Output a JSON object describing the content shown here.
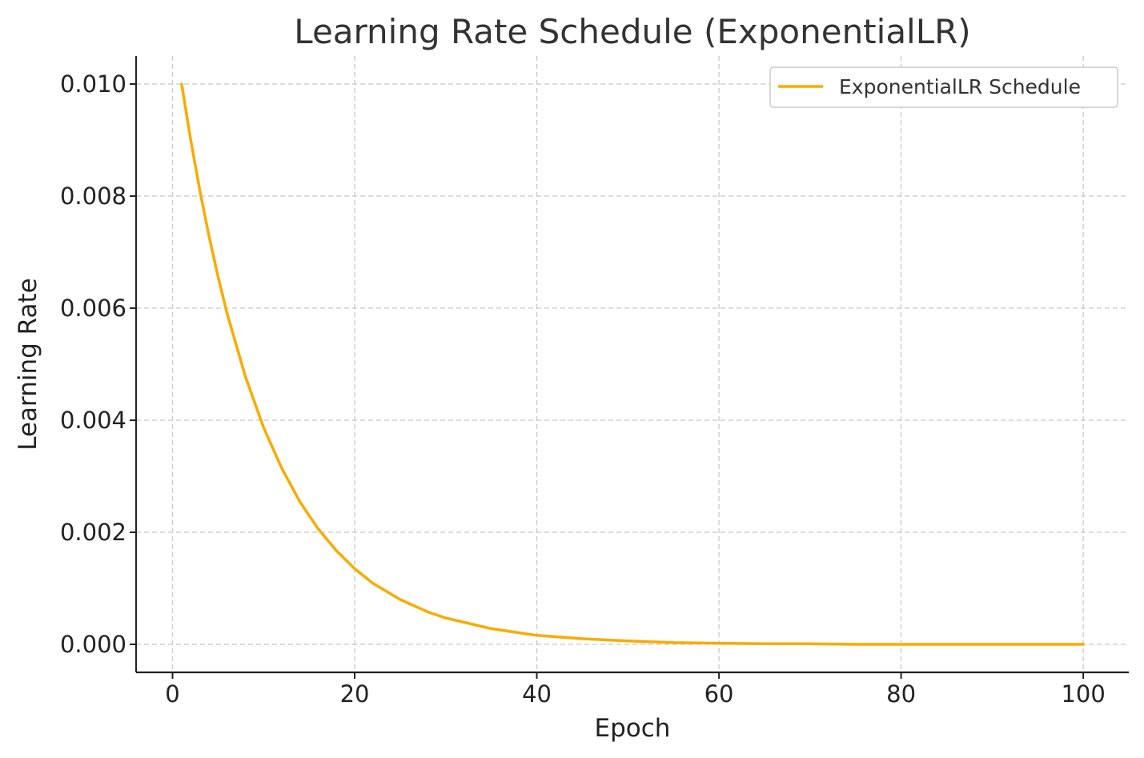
{
  "chart_data": {
    "type": "line",
    "title": "Learning Rate Schedule (ExponentialLR)",
    "xlabel": "Epoch",
    "ylabel": "Learning Rate",
    "xlim": [
      -4,
      105
    ],
    "ylim": [
      -0.0005,
      0.0105
    ],
    "xticks": [
      0,
      20,
      40,
      60,
      80,
      100
    ],
    "xtick_labels": [
      "0",
      "20",
      "40",
      "60",
      "80",
      "100"
    ],
    "yticks": [
      0.0,
      0.002,
      0.004,
      0.006,
      0.008,
      0.01
    ],
    "ytick_labels": [
      "0.000",
      "0.002",
      "0.004",
      "0.006",
      "0.008",
      "0.010"
    ],
    "grid": true,
    "legend_position": "top-right",
    "series": [
      {
        "name": "ExponentialLR Schedule",
        "color": "#f9ab00",
        "x": [
          1,
          2,
          3,
          4,
          5,
          6,
          8,
          10,
          12,
          14,
          16,
          18,
          20,
          22,
          25,
          28,
          30,
          35,
          40,
          45,
          50,
          55,
          60,
          65,
          70,
          75,
          80,
          85,
          90,
          95,
          100
        ],
        "y": [
          0.01,
          0.009,
          0.0081,
          0.00729,
          0.00656,
          0.0059,
          0.00478,
          0.00387,
          0.00314,
          0.00254,
          0.00206,
          0.00167,
          0.00135,
          0.00109,
          0.0008,
          0.00058,
          0.00047,
          0.00028,
          0.00016,
          0.0001,
          6e-05,
          3e-05,
          2e-05,
          1e-05,
          1e-05,
          0.0,
          0.0,
          0.0,
          0.0,
          0.0,
          0.0
        ]
      }
    ]
  }
}
